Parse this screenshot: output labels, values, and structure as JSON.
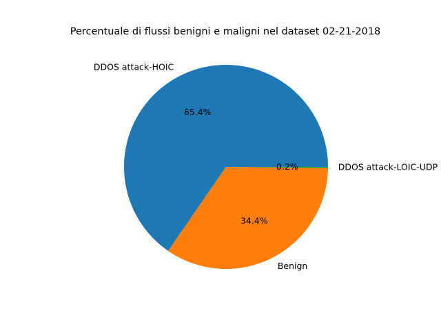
{
  "chart_data": {
    "type": "pie",
    "title": "Percentuale di flussi benigni e maligni nel dataset 02-21-2018",
    "slices": [
      {
        "label": "DDOS attack-HOIC",
        "value": 65.4,
        "pct_label": "65.4%",
        "color": "#1f77b4"
      },
      {
        "label": "Benign",
        "value": 34.4,
        "pct_label": "34.4%",
        "color": "#ff7f0e"
      },
      {
        "label": "DDOS attack-LOIC-UDP",
        "value": 0.2,
        "pct_label": "0.2%",
        "color": "#2ca02c"
      }
    ],
    "start_angle_deg": 0,
    "direction": "counterclockwise",
    "legend": "none"
  }
}
